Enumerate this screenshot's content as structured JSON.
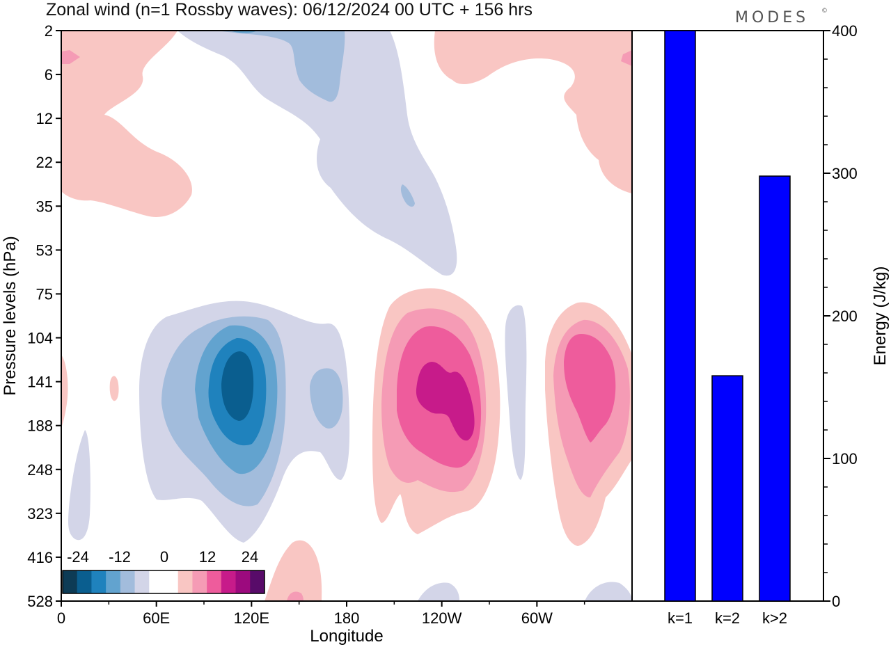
{
  "title": "Zonal wind (n=1 Rossby waves):  06/12/2024  00 UTC  + 156 hrs",
  "brand": "MODES",
  "brand_mark": "©",
  "chart_data": [
    {
      "type": "heatmap",
      "xlabel": "Longitude",
      "ylabel": "Pressure levels (hPa)",
      "x_ticks": [
        "0",
        "60E",
        "120E",
        "180",
        "120W",
        "60W"
      ],
      "x_tick_degrees": [
        0,
        60,
        120,
        180,
        240,
        300
      ],
      "xlim": [
        0,
        360
      ],
      "y_ticks": [
        "2",
        "6",
        "12",
        "22",
        "35",
        "53",
        "75",
        "104",
        "141",
        "188",
        "248",
        "323",
        "416",
        "528"
      ],
      "colorbar": {
        "labels": [
          "-24",
          "-12",
          "0",
          "12",
          "24"
        ],
        "colors": [
          "#0d3b55",
          "#0a5e8f",
          "#1f82bd",
          "#62a3cf",
          "#a2bcdc",
          "#d3d5e8",
          "#ffffff",
          "#ffffff",
          "#f9c6c3",
          "#f59bb5",
          "#ee5c9c",
          "#c71b8a",
          "#9c0a7e",
          "#580b69"
        ]
      },
      "features": [
        {
          "sign": "negative",
          "center_lon": 112,
          "center_p": "141",
          "min_level": -24
        },
        {
          "sign": "positive",
          "center_lon": 236,
          "center_p": "141",
          "max_level": 20
        },
        {
          "sign": "positive",
          "center_lon": 335,
          "center_p": "141",
          "max_level": 16
        },
        {
          "sign": "negative",
          "center_lon": 165,
          "center_p": "2-53",
          "min_level": -8
        },
        {
          "sign": "positive",
          "center_lon": 20,
          "center_p": "2-35",
          "max_level": 8
        },
        {
          "sign": "positive",
          "center_lon": 320,
          "center_p": "2-22",
          "max_level": 8
        }
      ]
    },
    {
      "type": "bar",
      "categories": [
        "k=1",
        "k=2",
        "k>2"
      ],
      "values": [
        400,
        158,
        298
      ],
      "ylabel": "Energy (J/kg)",
      "ylim": [
        0,
        400
      ],
      "y_ticks": [
        0,
        100,
        200,
        300,
        400
      ],
      "bar_color": "#0000ff"
    }
  ]
}
